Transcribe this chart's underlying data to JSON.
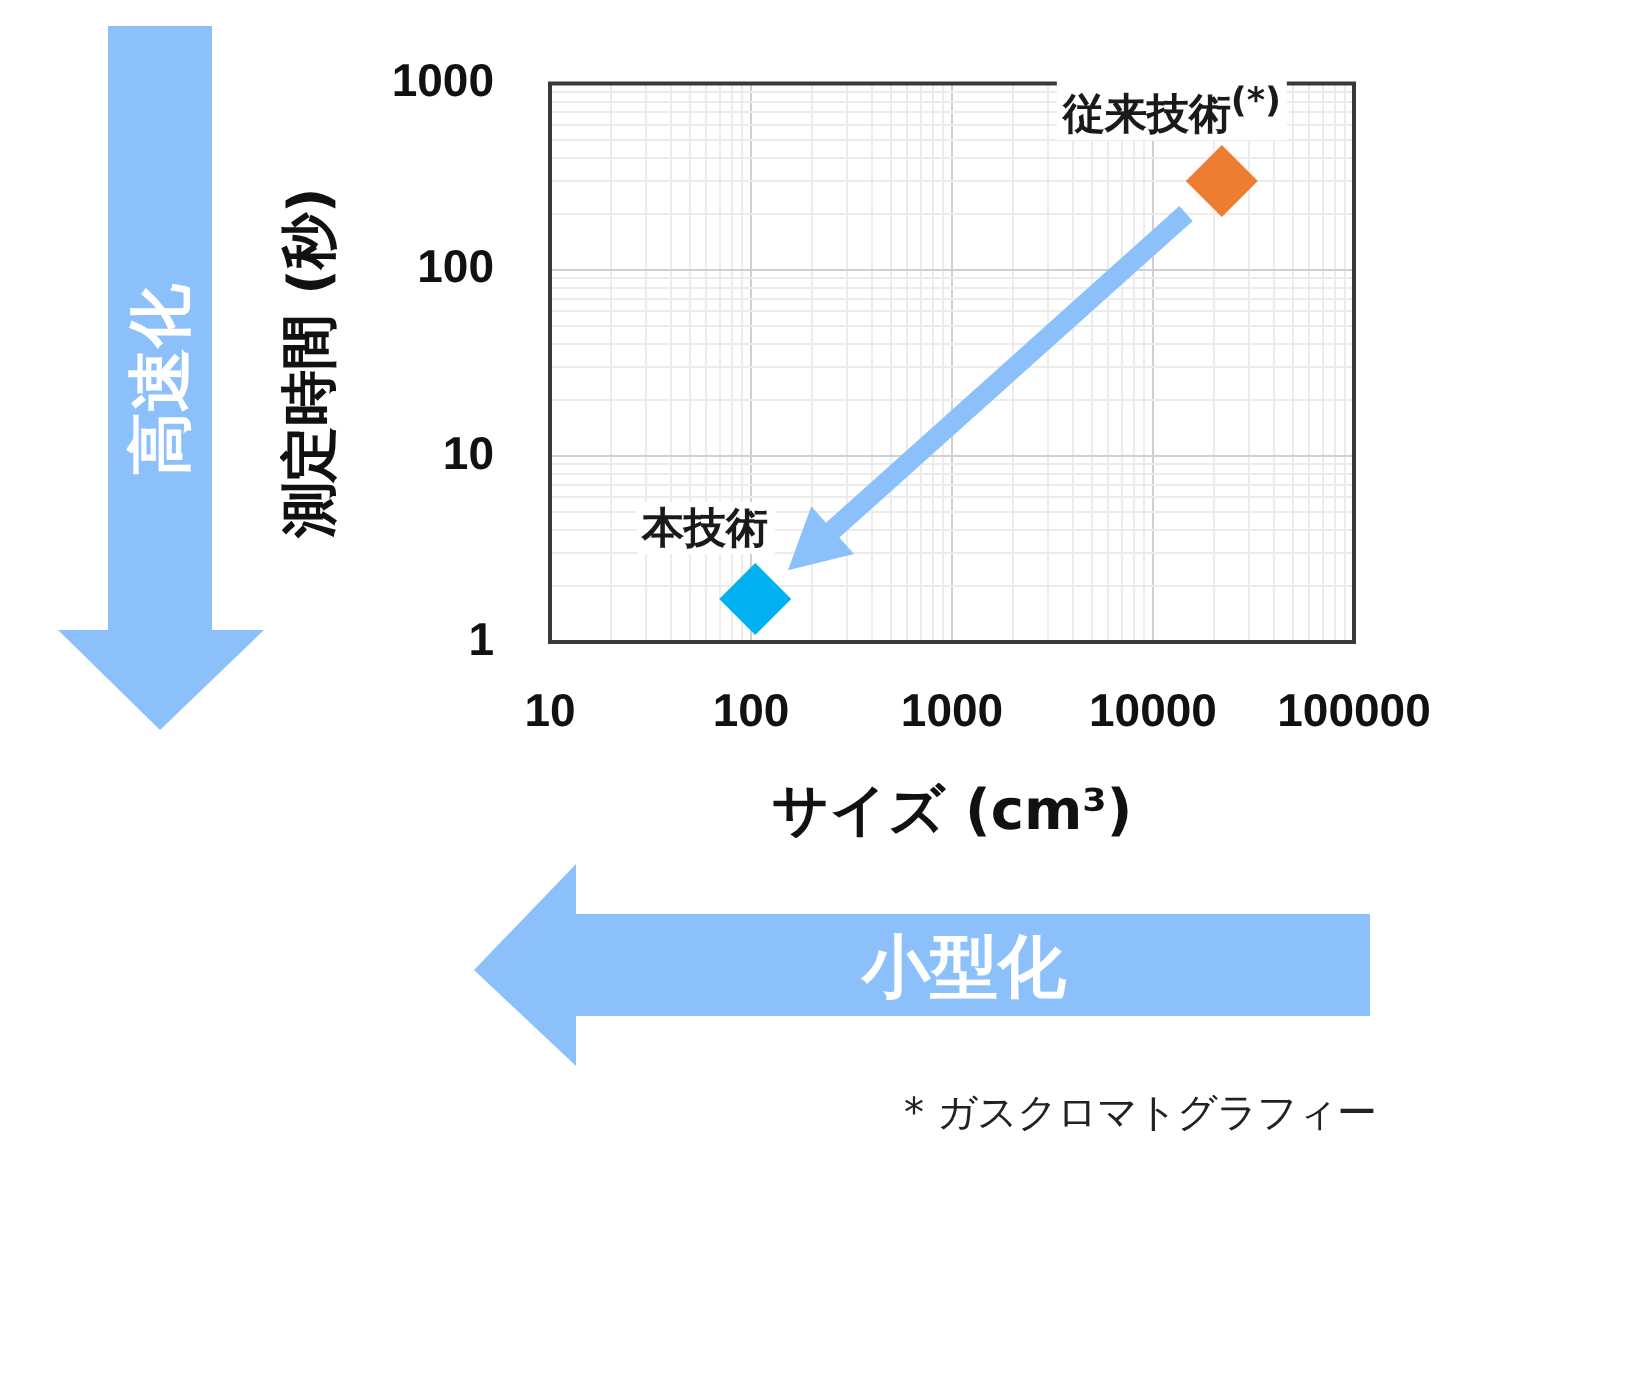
{
  "chart_data": {
    "type": "scatter",
    "xlabel": "サイズ (cm³)",
    "ylabel": "測定時間 (秒)",
    "series": [
      {
        "name": "本技術",
        "color": "#00b0f0",
        "x": [
          105
        ],
        "values": [
          1.7
        ]
      },
      {
        "name": "従来技術$^{(*)}$",
        "color": "#ed7d31",
        "x": [
          22000
        ],
        "values": [
          300
        ]
      }
    ],
    "xlim": [
      10,
      100000
    ],
    "ylim": [
      1,
      1000
    ],
    "xticks": [
      10,
      {
        "value": 20,
        "label": null
      },
      {
        "value": 30,
        "label": null
      },
      {
        "value": 40,
        "label": null
      },
      {
        "value": 50,
        "label": null
      },
      {
        "value": 60,
        "label": null
      },
      {
        "value": 70,
        "label": null
      },
      {
        "value": 80,
        "label": null
      },
      {
        "value": 90,
        "label": null
      },
      100,
      {
        "value": 200,
        "label": null
      },
      {
        "value": 300,
        "label": null
      },
      {
        "value": 400,
        "label": null
      },
      {
        "value": 500,
        "label": null
      },
      {
        "value": 600,
        "label": null
      },
      {
        "value": 700,
        "label": null
      },
      {
        "value": 800,
        "label": null
      },
      {
        "value": 900,
        "label": null
      },
      1000,
      {
        "value": 2000,
        "label": null
      },
      {
        "value": 3000,
        "label": null
      },
      {
        "value": 4000,
        "label": null
      },
      {
        "value": 5000,
        "label": null
      },
      {
        "value": 6000,
        "label": null
      },
      {
        "value": 7000,
        "label": null
      },
      {
        "value": 8000,
        "label": null
      },
      {
        "value": 9000,
        "label": null
      },
      10000,
      {
        "value": 20000,
        "label": null
      },
      {
        "value": 30000,
        "label": null
      },
      {
        "value": 40000,
        "label": null
      },
      {
        "value": 50000,
        "label": null
      },
      {
        "value": 60000,
        "label": null
      },
      {
        "value": 70000,
        "label": null
      },
      {
        "value": 80000,
        "label": null
      },
      {
        "value": 90000,
        "label": null
      },
      100000
    ],
    "yticks": [
      1,
      {
        "value": 2,
        "label": null
      },
      {
        "value": 3,
        "label": null
      },
      {
        "value": 4,
        "label": null
      },
      {
        "value": 5,
        "label": null
      },
      {
        "value": 6,
        "label": null
      },
      {
        "value": 7,
        "label": null
      },
      {
        "value": 8,
        "label": null
      },
      {
        "value": 9,
        "label": null
      },
      10,
      {
        "value": 20,
        "label": null
      },
      {
        "value": 30,
        "label": null
      },
      {
        "value": 40,
        "label": null
      },
      {
        "value": 50,
        "label": null
      },
      {
        "value": 60,
        "label": null
      },
      {
        "value": 70,
        "label": null
      },
      {
        "value": 80,
        "label": null
      },
      {
        "value": 90,
        "label": null
      },
      100,
      {
        "value": 200,
        "label": null
      },
      {
        "value": 300,
        "label": null
      },
      {
        "value": 400,
        "label": null
      },
      {
        "value": 500,
        "label": null
      },
      {
        "value": 600,
        "label": null
      },
      {
        "value": 700,
        "label": null
      },
      {
        "value": 800,
        "label": null
      },
      {
        "value": 900,
        "label": null
      },
      1000
    ],
    "log": "xy",
    "grid": true,
    "marker": "diamond",
    "annotations": [
      "高速化",
      "小型化",
      "* ガスクロマトグラフィー"
    ]
  }
}
